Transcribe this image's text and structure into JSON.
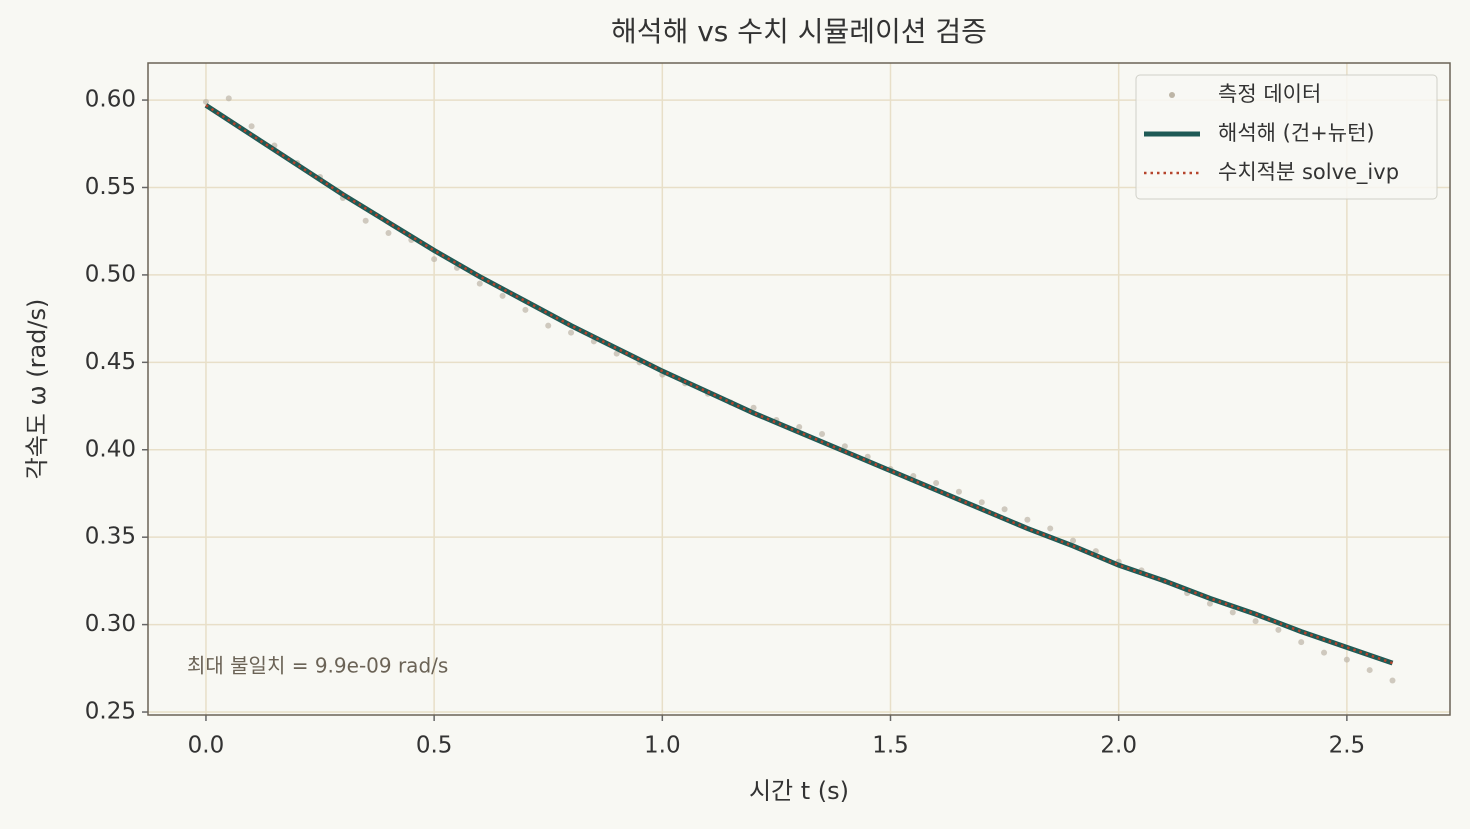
{
  "chart_data": {
    "type": "line",
    "title": "해석해 vs 수치 시뮬레이션 검증",
    "x_label": "시간 t (s)",
    "y_label": "각속도 ω (rad/s)",
    "annotation": "최대 불일치 = 9.9e-09 rad/s",
    "xlim": [
      -0.127,
      2.726
    ],
    "ylim": [
      0.2483,
      0.6212
    ],
    "xticks": [
      {
        "value": 0,
        "label": "0.0"
      },
      0.5,
      {
        "value": 1,
        "label": "1.0"
      },
      1.5,
      {
        "value": 2,
        "label": "2.0"
      },
      2.5
    ],
    "yticks": [
      0.25,
      {
        "value": 0.3,
        "label": "0.30"
      },
      0.35,
      {
        "value": 0.4,
        "label": "0.40"
      },
      0.45,
      {
        "value": 0.5,
        "label": "0.50"
      },
      0.55,
      {
        "value": 0.6,
        "label": "0.60"
      }
    ],
    "grid": true,
    "legend": "upper right",
    "series": [
      {
        "name": "측정 데이터",
        "style": "scatter",
        "color": "#bdb5a6",
        "x": [
          0,
          0.05,
          0.1,
          0.15,
          0.2,
          0.25,
          0.3,
          0.35,
          0.4,
          0.45,
          0.5,
          0.55,
          0.6,
          0.65,
          0.7,
          0.75,
          0.8,
          0.85,
          0.9,
          0.95,
          1,
          1.05,
          1.1,
          1.15,
          1.2,
          1.25,
          1.3,
          1.35,
          1.4,
          1.45,
          1.5,
          1.55,
          1.6,
          1.65,
          1.7,
          1.75,
          1.8,
          1.85,
          1.9,
          1.95,
          2,
          2.05,
          2.1,
          2.15,
          2.2,
          2.25,
          2.3,
          2.35,
          2.4,
          2.45,
          2.5,
          2.55,
          2.6
        ],
        "values": [
          0.599,
          0.601,
          0.585,
          0.574,
          0.564,
          0.556,
          0.544,
          0.531,
          0.524,
          0.52,
          0.509,
          0.504,
          0.495,
          0.488,
          0.48,
          0.471,
          0.467,
          0.462,
          0.455,
          0.45,
          0.443,
          0.438,
          0.432,
          0.427,
          0.424,
          0.417,
          0.413,
          0.409,
          0.402,
          0.396,
          0.389,
          0.385,
          0.381,
          0.376,
          0.37,
          0.366,
          0.36,
          0.355,
          0.348,
          0.342,
          0.336,
          0.331,
          0.325,
          0.318,
          0.312,
          0.307,
          0.302,
          0.297,
          0.29,
          0.284,
          0.28,
          0.274,
          0.268
        ]
      },
      {
        "name": "해석해 (건+뉴턴)",
        "style": "solid",
        "color": "#1e5a55",
        "x": [
          0,
          0.1,
          0.2,
          0.3,
          0.4,
          0.5,
          0.6,
          0.7,
          0.8,
          0.9,
          1,
          1.1,
          1.2,
          1.3,
          1.4,
          1.5,
          1.6,
          1.7,
          1.8,
          1.9,
          2,
          2.1,
          2.2,
          2.3,
          2.4,
          2.5,
          2.6
        ],
        "values": [
          0.597,
          0.58,
          0.563,
          0.546,
          0.53,
          0.514,
          0.499,
          0.485,
          0.471,
          0.458,
          0.445,
          0.433,
          0.421,
          0.41,
          0.399,
          0.388,
          0.377,
          0.366,
          0.355,
          0.345,
          0.334,
          0.325,
          0.315,
          0.306,
          0.296,
          0.287,
          0.278
        ]
      },
      {
        "name": "수치적분 solve_ivp",
        "style": "dotted",
        "color": "#b5442c",
        "x": [
          0,
          0.1,
          0.2,
          0.3,
          0.4,
          0.5,
          0.6,
          0.7,
          0.8,
          0.9,
          1,
          1.1,
          1.2,
          1.3,
          1.4,
          1.5,
          1.6,
          1.7,
          1.8,
          1.9,
          2,
          2.1,
          2.2,
          2.3,
          2.4,
          2.5,
          2.6
        ],
        "values": [
          0.597,
          0.58,
          0.563,
          0.546,
          0.53,
          0.514,
          0.499,
          0.485,
          0.471,
          0.458,
          0.445,
          0.433,
          0.421,
          0.41,
          0.399,
          0.388,
          0.377,
          0.366,
          0.355,
          0.345,
          0.334,
          0.325,
          0.315,
          0.306,
          0.296,
          0.287,
          0.278
        ]
      }
    ]
  }
}
